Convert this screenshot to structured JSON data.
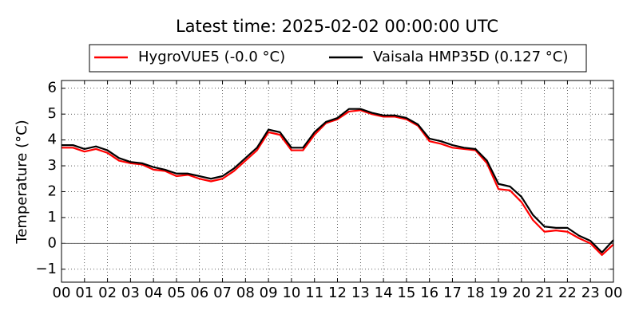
{
  "chart_data": {
    "type": "line",
    "title": "Latest time: 2025-02-02 00:00:00 UTC",
    "ylabel": "Temperature (°C)",
    "x": [
      0,
      0.5,
      1,
      1.5,
      2,
      2.5,
      3,
      3.5,
      4,
      4.5,
      5,
      5.5,
      6,
      6.5,
      7,
      7.5,
      8,
      8.5,
      9,
      9.5,
      10,
      10.5,
      11,
      11.5,
      12,
      12.5,
      13,
      13.5,
      14,
      14.5,
      15,
      15.5,
      16,
      16.5,
      17,
      17.5,
      18,
      18.5,
      19,
      19.5,
      20,
      20.5,
      21,
      21.5,
      22,
      22.5,
      23,
      23.5,
      24
    ],
    "series": [
      {
        "name": "HygroVUE5 (-0.0 °C)",
        "color": "#ff0000",
        "values": [
          3.7,
          3.7,
          3.55,
          3.65,
          3.5,
          3.2,
          3.1,
          3.05,
          2.85,
          2.8,
          2.6,
          2.65,
          2.5,
          2.4,
          2.5,
          2.8,
          3.2,
          3.6,
          4.3,
          4.2,
          3.6,
          3.6,
          4.2,
          4.65,
          4.8,
          5.1,
          5.15,
          5.0,
          4.9,
          4.9,
          4.8,
          4.55,
          3.95,
          3.85,
          3.7,
          3.65,
          3.6,
          3.1,
          2.1,
          2.05,
          1.6,
          0.9,
          0.45,
          0.5,
          0.45,
          0.2,
          0.0,
          -0.45,
          -0.04
        ]
      },
      {
        "name": "Vaisala HMP35D (0.127 °C)",
        "color": "#000000",
        "values": [
          3.8,
          3.8,
          3.65,
          3.75,
          3.6,
          3.3,
          3.15,
          3.1,
          2.95,
          2.85,
          2.7,
          2.7,
          2.6,
          2.5,
          2.6,
          2.9,
          3.3,
          3.7,
          4.4,
          4.3,
          3.7,
          3.7,
          4.3,
          4.7,
          4.85,
          5.2,
          5.2,
          5.05,
          4.95,
          4.95,
          4.85,
          4.6,
          4.05,
          3.95,
          3.8,
          3.7,
          3.65,
          3.2,
          2.3,
          2.2,
          1.8,
          1.1,
          0.65,
          0.6,
          0.6,
          0.3,
          0.1,
          -0.35,
          0.127
        ]
      }
    ],
    "xlim": [
      0,
      24
    ],
    "xticks": [
      {
        "value": 0,
        "label": "00"
      },
      {
        "value": 1,
        "label": "01"
      },
      {
        "value": 2,
        "label": "02"
      },
      {
        "value": 3,
        "label": "03"
      },
      {
        "value": 4,
        "label": "04"
      },
      {
        "value": 5,
        "label": "05"
      },
      {
        "value": 6,
        "label": "06"
      },
      {
        "value": 7,
        "label": "07"
      },
      {
        "value": 8,
        "label": "08"
      },
      {
        "value": 9,
        "label": "09"
      },
      {
        "value": 10,
        "label": "10"
      },
      {
        "value": 11,
        "label": "11"
      },
      {
        "value": 12,
        "label": "12"
      },
      {
        "value": 13,
        "label": "13"
      },
      {
        "value": 14,
        "label": "14"
      },
      {
        "value": 15,
        "label": "15"
      },
      {
        "value": 16,
        "label": "16"
      },
      {
        "value": 17,
        "label": "17"
      },
      {
        "value": 18,
        "label": "18"
      },
      {
        "value": 19,
        "label": "19"
      },
      {
        "value": 20,
        "label": "20"
      },
      {
        "value": 21,
        "label": "21"
      },
      {
        "value": 22,
        "label": "22"
      },
      {
        "value": 23,
        "label": "23"
      },
      {
        "value": 24,
        "label": "00"
      }
    ],
    "ylim": [
      -1.5,
      6.3
    ],
    "yticks": [
      {
        "value": -1,
        "label": "−1"
      },
      0,
      1,
      2,
      3,
      4,
      5,
      6
    ],
    "grid": true
  }
}
